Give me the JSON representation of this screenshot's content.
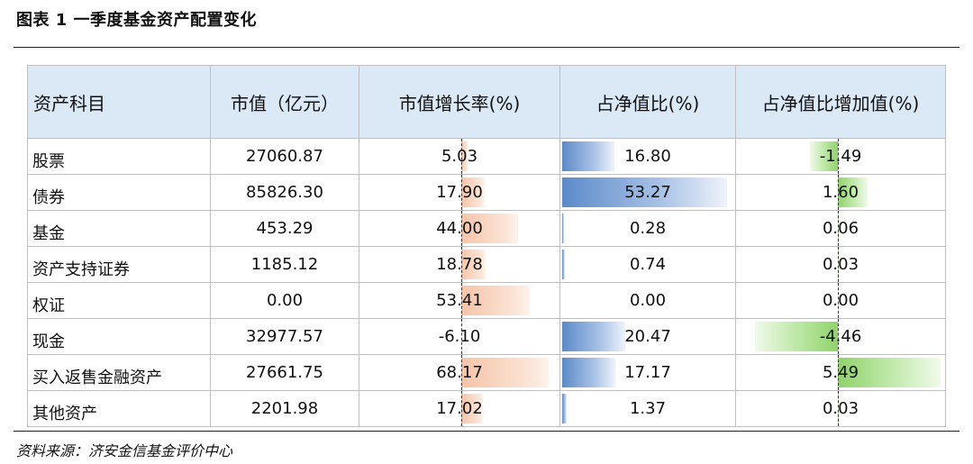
{
  "title": "图表 1 一季度基金资产配置变化",
  "source": "资料来源：济安金信基金评价中心",
  "headers": [
    "资产科目",
    "市值（亿元）",
    "市值增长率(%)",
    "占净值比(%)",
    "占净值比增加值(%)"
  ],
  "colors": {
    "header_bg": "#dbe8f6",
    "growth_bar": "#f6c4a8",
    "ratio_bar": "#5b8ac9",
    "change_bar": "#8fd36a"
  },
  "rows": [
    {
      "name": "股票",
      "value": "27060.87",
      "growth": "5.03",
      "ratio": "16.80",
      "change": "-1.49"
    },
    {
      "name": "债券",
      "value": "85826.30",
      "growth": "17.90",
      "ratio": "53.27",
      "change": "1.60"
    },
    {
      "name": "基金",
      "value": "453.29",
      "growth": "44.00",
      "ratio": "0.28",
      "change": "0.06"
    },
    {
      "name": "资产支持证券",
      "value": "1185.12",
      "growth": "18.78",
      "ratio": "0.74",
      "change": "0.03"
    },
    {
      "name": "权证",
      "value": "0.00",
      "growth": "53.41",
      "ratio": "0.00",
      "change": "0.00"
    },
    {
      "name": "现金",
      "value": "32977.57",
      "growth": "-6.10",
      "ratio": "20.47",
      "change": "-4.46"
    },
    {
      "name": "买入返售金融资产",
      "value": "27661.75",
      "growth": "68.17",
      "ratio": "17.17",
      "change": "5.49"
    },
    {
      "name": "其他资产",
      "value": "2201.98",
      "growth": "17.02",
      "ratio": "1.37",
      "change": "0.03"
    }
  ]
}
